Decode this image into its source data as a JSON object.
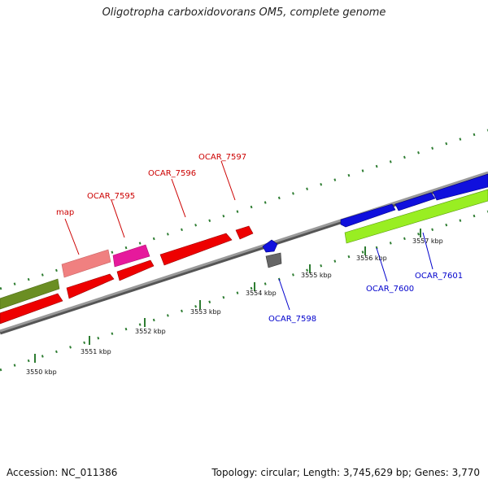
{
  "title": "Oligotropha carboxidovorans OM5, complete genome",
  "footer": {
    "accession": "Accession: NC_011386",
    "summary": "Topology: circular; Length: 3,745,629 bp; Genes: 3,770"
  },
  "colors": {
    "outer_labels": "#cc0000",
    "inner_labels": "#0000cc",
    "backbone": "#808080",
    "ticks": "#2e7d32"
  },
  "scale": {
    "ticks": [
      {
        "label": "3550 kbp"
      },
      {
        "label": "3551 kbp"
      },
      {
        "label": "3552 kbp"
      },
      {
        "label": "3553 kbp"
      },
      {
        "label": "3554 kbp"
      },
      {
        "label": "3555 kbp"
      },
      {
        "label": "3556 kbp"
      },
      {
        "label": "3557 kbp"
      }
    ]
  },
  "labels": {
    "outer": [
      "map",
      "OCAR_7595",
      "OCAR_7596",
      "OCAR_7597"
    ],
    "inner": [
      "OCAR_7598",
      "OCAR_7600",
      "OCAR_7601"
    ]
  },
  "features": [
    {
      "name": "olive-feature",
      "color": "#6b8e23"
    },
    {
      "name": "pink-feature",
      "color": "#f08080"
    },
    {
      "name": "magenta-feature",
      "color": "#e6199c"
    },
    {
      "name": "red-cds",
      "color": "#ee0000"
    },
    {
      "name": "blue-cds",
      "color": "#1010dd"
    },
    {
      "name": "gray-feature",
      "color": "#666666"
    },
    {
      "name": "lime-feature",
      "color": "#99ee22"
    }
  ]
}
